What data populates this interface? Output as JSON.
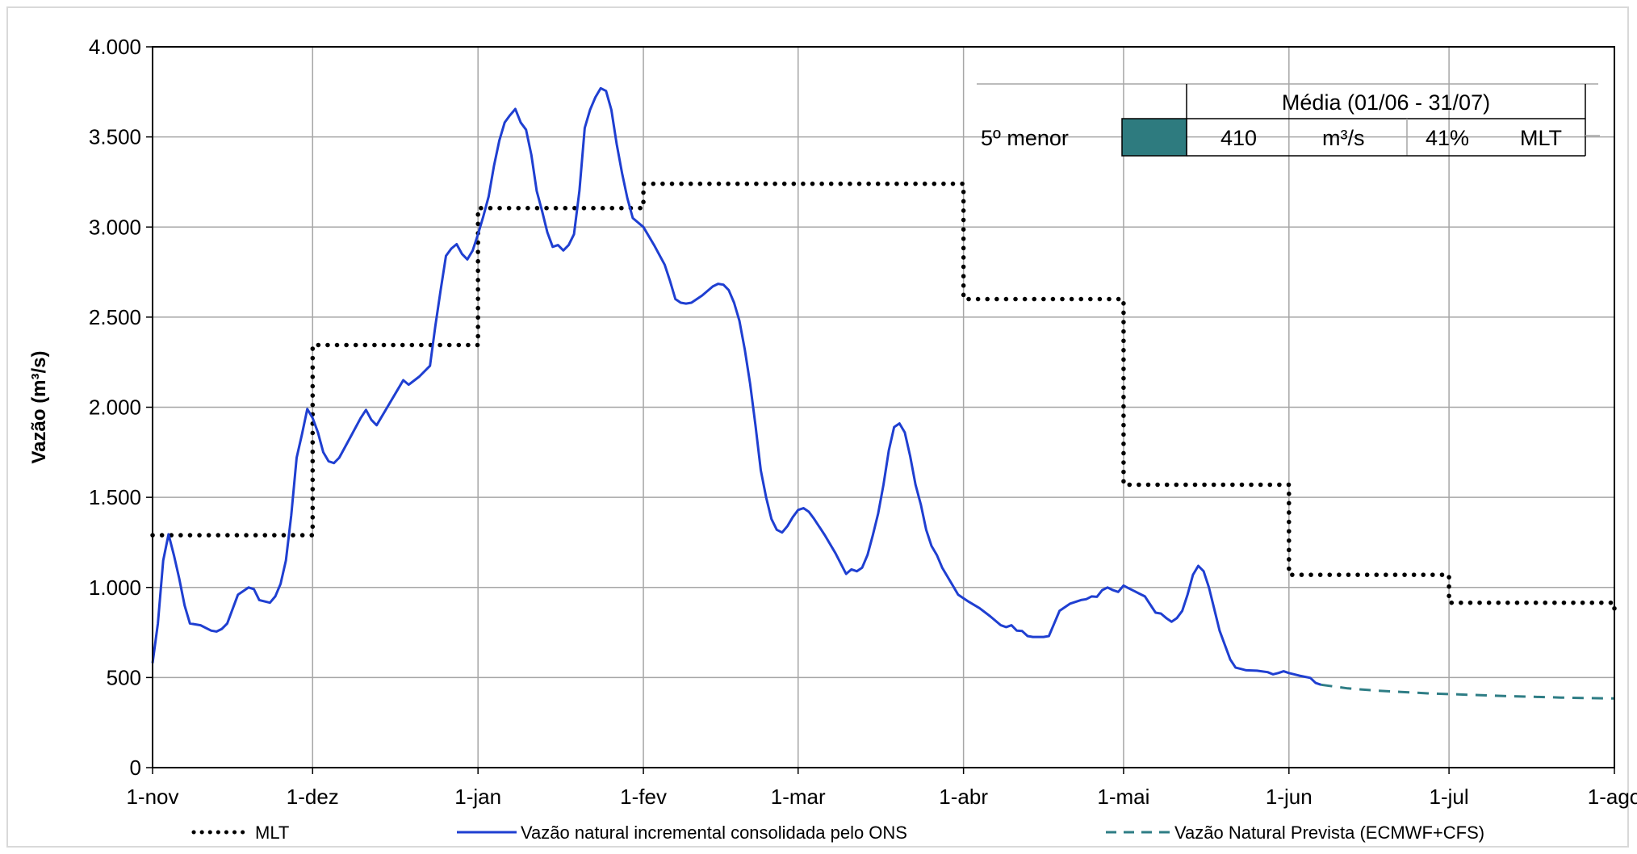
{
  "chart_data": {
    "type": "line",
    "ylabel": "Vazão (m³/s)",
    "ylim": [
      0,
      4000
    ],
    "yticks": [
      0,
      500,
      1000,
      1500,
      2000,
      2500,
      3000,
      3500,
      4000
    ],
    "ytick_labels": [
      "0",
      "500",
      "1.000",
      "1.500",
      "2.000",
      "2.500",
      "3.000",
      "3.500",
      "4.000"
    ],
    "xlim": [
      "2023-11-01",
      "2024-08-01"
    ],
    "xticks": [
      "2023-11-01",
      "2023-12-01",
      "2024-01-01",
      "2024-02-01",
      "2024-03-01",
      "2024-04-01",
      "2024-05-01",
      "2024-06-01",
      "2024-07-01",
      "2024-08-01"
    ],
    "xtick_labels": [
      "1-nov",
      "1-dez",
      "1-jan",
      "1-fev",
      "1-mar",
      "1-abr",
      "1-mai",
      "1-jun",
      "1-jul",
      "1-ago"
    ],
    "grid": true,
    "legend_position": "bottom",
    "series": [
      {
        "name": "MLT",
        "style": "dotted",
        "color": "#000000",
        "steps": [
          {
            "from": "2023-11-01",
            "to": "2023-12-01",
            "value": 1290
          },
          {
            "from": "2023-12-01",
            "to": "2024-01-01",
            "value": 2345
          },
          {
            "from": "2024-01-01",
            "to": "2024-02-01",
            "value": 3105
          },
          {
            "from": "2024-02-01",
            "to": "2024-04-01",
            "value": 3240
          },
          {
            "from": "2024-04-01",
            "to": "2024-05-01",
            "value": 2600
          },
          {
            "from": "2024-05-01",
            "to": "2024-06-01",
            "value": 1570
          },
          {
            "from": "2024-06-01",
            "to": "2024-07-01",
            "value": 1070
          },
          {
            "from": "2024-07-01",
            "to": "2024-08-01",
            "value": 915
          }
        ]
      },
      {
        "name": "Vazão natural incremental consolidada pelo ONS",
        "style": "solid",
        "color": "#1f3fd1",
        "points": [
          [
            "2023-11-01",
            580
          ],
          [
            "2023-11-02",
            800
          ],
          [
            "2023-11-03",
            1150
          ],
          [
            "2023-11-04",
            1295
          ],
          [
            "2023-11-05",
            1180
          ],
          [
            "2023-11-06",
            1050
          ],
          [
            "2023-11-07",
            900
          ],
          [
            "2023-11-08",
            800
          ],
          [
            "2023-11-10",
            790
          ],
          [
            "2023-11-12",
            760
          ],
          [
            "2023-11-13",
            755
          ],
          [
            "2023-11-14",
            770
          ],
          [
            "2023-11-15",
            800
          ],
          [
            "2023-11-17",
            960
          ],
          [
            "2023-11-19",
            1000
          ],
          [
            "2023-11-20",
            990
          ],
          [
            "2023-11-21",
            930
          ],
          [
            "2023-11-23",
            915
          ],
          [
            "2023-11-24",
            950
          ],
          [
            "2023-11-25",
            1020
          ],
          [
            "2023-11-26",
            1150
          ],
          [
            "2023-11-27",
            1400
          ],
          [
            "2023-11-28",
            1720
          ],
          [
            "2023-11-29",
            1850
          ],
          [
            "2023-11-30",
            1990
          ],
          [
            "2023-12-01",
            1940
          ],
          [
            "2023-12-02",
            1860
          ],
          [
            "2023-12-03",
            1750
          ],
          [
            "2023-12-04",
            1700
          ],
          [
            "2023-12-05",
            1690
          ],
          [
            "2023-12-06",
            1720
          ],
          [
            "2023-12-08",
            1830
          ],
          [
            "2023-12-10",
            1940
          ],
          [
            "2023-12-11",
            1985
          ],
          [
            "2023-12-12",
            1930
          ],
          [
            "2023-12-13",
            1900
          ],
          [
            "2023-12-15",
            2000
          ],
          [
            "2023-12-17",
            2100
          ],
          [
            "2023-12-18",
            2150
          ],
          [
            "2023-12-19",
            2125
          ],
          [
            "2023-12-21",
            2170
          ],
          [
            "2023-12-23",
            2230
          ],
          [
            "2023-12-24",
            2450
          ],
          [
            "2023-12-25",
            2650
          ],
          [
            "2023-12-26",
            2840
          ],
          [
            "2023-12-27",
            2880
          ],
          [
            "2023-12-28",
            2905
          ],
          [
            "2023-12-29",
            2850
          ],
          [
            "2023-12-30",
            2820
          ],
          [
            "2023-12-31",
            2870
          ],
          [
            "2024-01-01",
            2960
          ],
          [
            "2024-01-02",
            3060
          ],
          [
            "2024-01-03",
            3170
          ],
          [
            "2024-01-04",
            3340
          ],
          [
            "2024-01-05",
            3480
          ],
          [
            "2024-01-06",
            3580
          ],
          [
            "2024-01-07",
            3620
          ],
          [
            "2024-01-08",
            3655
          ],
          [
            "2024-01-09",
            3580
          ],
          [
            "2024-01-10",
            3540
          ],
          [
            "2024-01-11",
            3400
          ],
          [
            "2024-01-12",
            3200
          ],
          [
            "2024-01-13",
            3090
          ],
          [
            "2024-01-14",
            2970
          ],
          [
            "2024-01-15",
            2890
          ],
          [
            "2024-01-16",
            2900
          ],
          [
            "2024-01-17",
            2870
          ],
          [
            "2024-01-18",
            2900
          ],
          [
            "2024-01-19",
            2960
          ],
          [
            "2024-01-20",
            3200
          ],
          [
            "2024-01-21",
            3550
          ],
          [
            "2024-01-22",
            3650
          ],
          [
            "2024-01-23",
            3720
          ],
          [
            "2024-01-24",
            3770
          ],
          [
            "2024-01-25",
            3755
          ],
          [
            "2024-01-26",
            3650
          ],
          [
            "2024-01-27",
            3460
          ],
          [
            "2024-01-28",
            3300
          ],
          [
            "2024-01-29",
            3160
          ],
          [
            "2024-01-30",
            3050
          ],
          [
            "2024-02-01",
            3000
          ],
          [
            "2024-02-03",
            2900
          ],
          [
            "2024-02-05",
            2790
          ],
          [
            "2024-02-06",
            2700
          ],
          [
            "2024-02-07",
            2600
          ],
          [
            "2024-02-08",
            2580
          ],
          [
            "2024-02-09",
            2575
          ],
          [
            "2024-02-10",
            2580
          ],
          [
            "2024-02-12",
            2620
          ],
          [
            "2024-02-14",
            2670
          ],
          [
            "2024-02-15",
            2685
          ],
          [
            "2024-02-16",
            2680
          ],
          [
            "2024-02-17",
            2650
          ],
          [
            "2024-02-18",
            2580
          ],
          [
            "2024-02-19",
            2480
          ],
          [
            "2024-02-20",
            2320
          ],
          [
            "2024-02-21",
            2130
          ],
          [
            "2024-02-22",
            1900
          ],
          [
            "2024-02-23",
            1650
          ],
          [
            "2024-02-24",
            1500
          ],
          [
            "2024-02-25",
            1380
          ],
          [
            "2024-02-26",
            1320
          ],
          [
            "2024-02-27",
            1305
          ],
          [
            "2024-02-28",
            1340
          ],
          [
            "2024-02-29",
            1390
          ],
          [
            "2024-03-01",
            1430
          ],
          [
            "2024-03-02",
            1440
          ],
          [
            "2024-03-03",
            1420
          ],
          [
            "2024-03-04",
            1380
          ],
          [
            "2024-03-06",
            1290
          ],
          [
            "2024-03-08",
            1190
          ],
          [
            "2024-03-10",
            1075
          ],
          [
            "2024-03-11",
            1100
          ],
          [
            "2024-03-12",
            1090
          ],
          [
            "2024-03-13",
            1110
          ],
          [
            "2024-03-14",
            1180
          ],
          [
            "2024-03-15",
            1290
          ],
          [
            "2024-03-16",
            1410
          ],
          [
            "2024-03-17",
            1570
          ],
          [
            "2024-03-18",
            1760
          ],
          [
            "2024-03-19",
            1890
          ],
          [
            "2024-03-20",
            1910
          ],
          [
            "2024-03-21",
            1860
          ],
          [
            "2024-03-22",
            1730
          ],
          [
            "2024-03-23",
            1570
          ],
          [
            "2024-03-24",
            1460
          ],
          [
            "2024-03-25",
            1320
          ],
          [
            "2024-03-26",
            1230
          ],
          [
            "2024-03-27",
            1180
          ],
          [
            "2024-03-28",
            1110
          ],
          [
            "2024-03-29",
            1060
          ],
          [
            "2024-03-30",
            1010
          ],
          [
            "2024-03-31",
            960
          ],
          [
            "2024-04-02",
            920
          ],
          [
            "2024-04-04",
            885
          ],
          [
            "2024-04-06",
            840
          ],
          [
            "2024-04-08",
            790
          ],
          [
            "2024-04-09",
            780
          ],
          [
            "2024-04-10",
            790
          ],
          [
            "2024-04-11",
            760
          ],
          [
            "2024-04-12",
            758
          ],
          [
            "2024-04-13",
            730
          ],
          [
            "2024-04-14",
            725
          ],
          [
            "2024-04-16",
            725
          ],
          [
            "2024-04-17",
            730
          ],
          [
            "2024-04-18",
            800
          ],
          [
            "2024-04-19",
            870
          ],
          [
            "2024-04-21",
            910
          ],
          [
            "2024-04-23",
            930
          ],
          [
            "2024-04-24",
            935
          ],
          [
            "2024-04-25",
            950
          ],
          [
            "2024-04-26",
            948
          ],
          [
            "2024-04-27",
            985
          ],
          [
            "2024-04-28",
            1000
          ],
          [
            "2024-04-29",
            985
          ],
          [
            "2024-04-30",
            975
          ],
          [
            "2024-05-01",
            1010
          ],
          [
            "2024-05-02",
            995
          ],
          [
            "2024-05-03",
            980
          ],
          [
            "2024-05-04",
            965
          ],
          [
            "2024-05-05",
            950
          ],
          [
            "2024-05-06",
            905
          ],
          [
            "2024-05-07",
            860
          ],
          [
            "2024-05-08",
            855
          ],
          [
            "2024-05-09",
            830
          ],
          [
            "2024-05-10",
            810
          ],
          [
            "2024-05-11",
            830
          ],
          [
            "2024-05-12",
            870
          ],
          [
            "2024-05-13",
            960
          ],
          [
            "2024-05-14",
            1070
          ],
          [
            "2024-05-15",
            1120
          ],
          [
            "2024-05-16",
            1090
          ],
          [
            "2024-05-17",
            1000
          ],
          [
            "2024-05-18",
            880
          ],
          [
            "2024-05-19",
            760
          ],
          [
            "2024-05-20",
            680
          ],
          [
            "2024-05-21",
            600
          ],
          [
            "2024-05-22",
            555
          ],
          [
            "2024-05-23",
            548
          ],
          [
            "2024-05-24",
            540
          ],
          [
            "2024-05-26",
            538
          ],
          [
            "2024-05-28",
            530
          ],
          [
            "2024-05-29",
            518
          ],
          [
            "2024-05-30",
            525
          ],
          [
            "2024-05-31",
            535
          ],
          [
            "2024-06-01",
            525
          ],
          [
            "2024-06-03",
            510
          ],
          [
            "2024-06-05",
            498
          ],
          [
            "2024-06-06",
            470
          ],
          [
            "2024-06-07",
            460
          ]
        ]
      },
      {
        "name": "Vazão Natural Prevista (ECMWF+CFS)",
        "style": "dashed",
        "color": "#2e7d85",
        "points": [
          [
            "2024-06-07",
            460
          ],
          [
            "2024-06-12",
            440
          ],
          [
            "2024-06-17",
            428
          ],
          [
            "2024-06-22",
            420
          ],
          [
            "2024-06-27",
            412
          ],
          [
            "2024-07-02",
            407
          ],
          [
            "2024-07-07",
            402
          ],
          [
            "2024-07-12",
            397
          ],
          [
            "2024-07-17",
            393
          ],
          [
            "2024-07-22",
            389
          ],
          [
            "2024-07-27",
            386
          ],
          [
            "2024-08-01",
            384
          ]
        ]
      }
    ]
  },
  "info_table": {
    "header": "Média (01/06 - 31/07)",
    "row_label": "5º menor",
    "swatch_color": "#2e7b7f",
    "value": "410",
    "unit": "m³/s",
    "percent": "41%",
    "reference": "MLT"
  }
}
